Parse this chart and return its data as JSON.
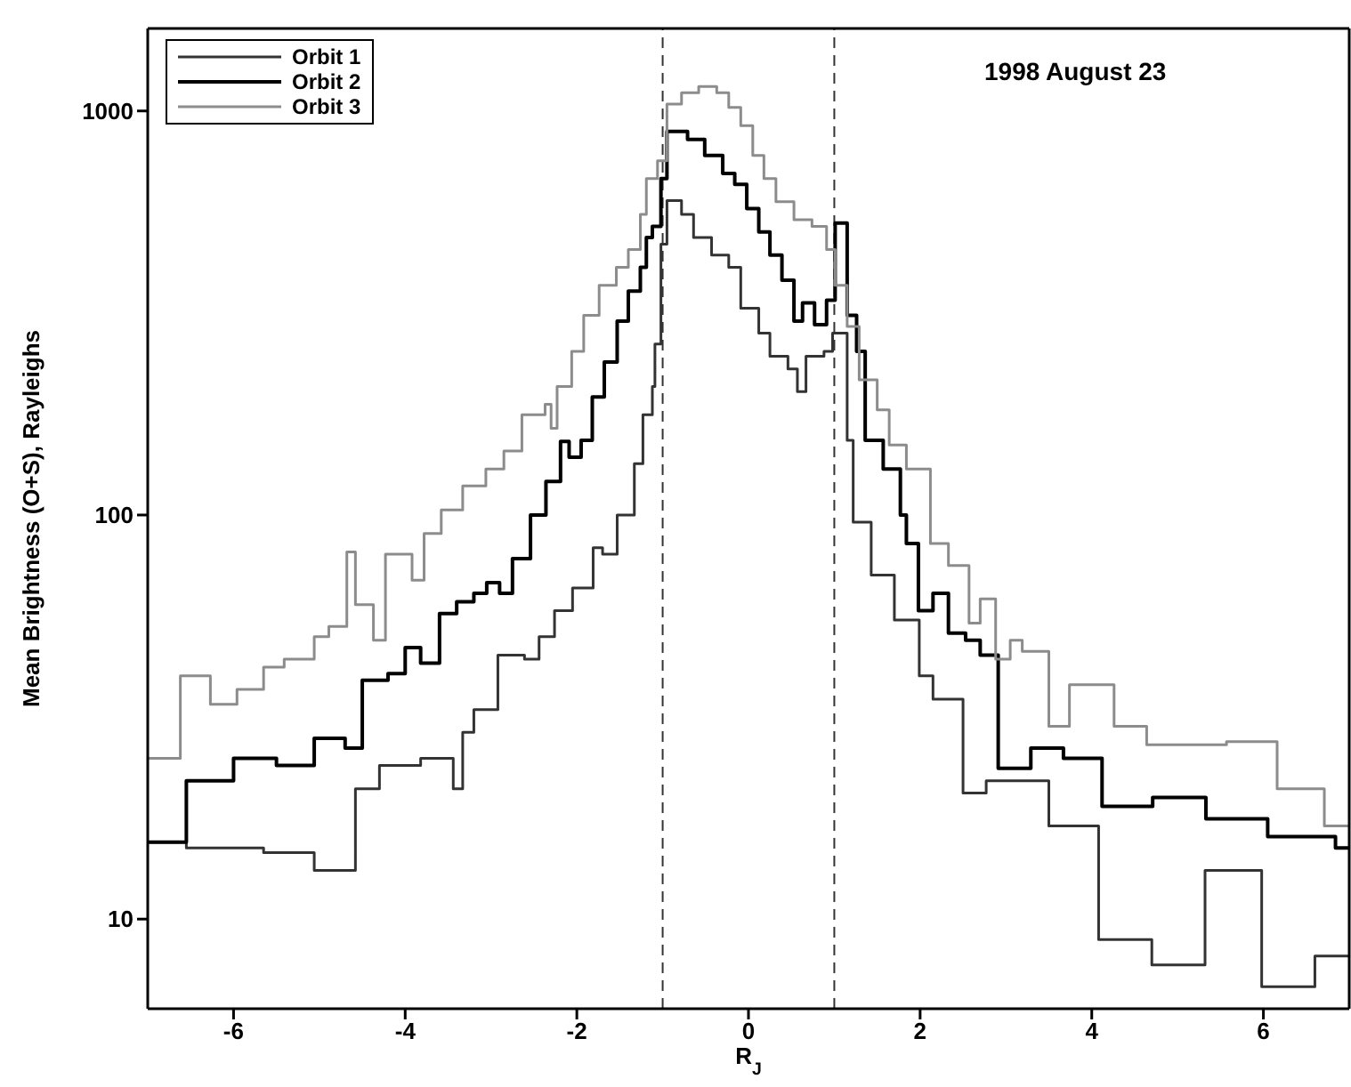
{
  "chart_data": {
    "type": "step",
    "xlabel": "R$_{J}$",
    "ylabel": "Mean Brightness (O+S), Rayleighs",
    "annotations": [
      "1998 August 23"
    ],
    "log": "y",
    "xlim": [
      -7,
      7
    ],
    "xticks": [
      -6,
      -4,
      -2,
      0,
      2,
      4,
      6
    ],
    "ylim": [
      6,
      1600
    ],
    "yticks": [
      10,
      100,
      1000
    ],
    "legend": "top left",
    "marker": "none",
    "line_style": "solid",
    "ref_lines": [
      {
        "axis": "x",
        "value": -1,
        "line_style": "dashed",
        "color": "#333333"
      },
      {
        "axis": "x",
        "value": 1,
        "line_style": "dashed",
        "color": "#333333"
      }
    ],
    "series": [
      {
        "name": "Orbit 1",
        "color": "#333333",
        "x": [
          -7,
          -6.55,
          -5.65,
          -5.06,
          -4.58,
          -4.3,
          -3.82,
          -3.44,
          -3.33,
          -3.2,
          -2.92,
          -2.61,
          -2.44,
          -2.26,
          -2.05,
          -1.81,
          -1.7,
          -1.53,
          -1.33,
          -1.23,
          -1.12,
          -1.09,
          -1.02,
          -0.95,
          -0.78,
          -0.64,
          -0.43,
          -0.23,
          -0.09,
          0.12,
          0.25,
          0.46,
          0.57,
          0.67,
          0.88,
          0.98,
          1.15,
          1.22,
          1.43,
          1.7,
          1.99,
          2.15,
          2.5,
          2.77,
          3.5,
          4.08,
          4.7,
          5.32,
          5.98,
          6.6,
          7
        ],
        "values": [
          15.5,
          15,
          14.6,
          13.2,
          21,
          24,
          25,
          21,
          29,
          33,
          45,
          44,
          50,
          58,
          66,
          83,
          80,
          100,
          134,
          177,
          208,
          265,
          468,
          600,
          555,
          486,
          440,
          410,
          325,
          282,
          247,
          230,
          202,
          247,
          254,
          282,
          153,
          96,
          71,
          55,
          40,
          35,
          20.5,
          22,
          17,
          8.9,
          7.7,
          13.2,
          6.8,
          8.1,
          8.1
        ]
      },
      {
        "name": "Orbit 2",
        "color": "#000000",
        "x": [
          -7,
          -6.55,
          -6.0,
          -5.5,
          -5.06,
          -4.7,
          -4.5,
          -4.2,
          -4.0,
          -3.82,
          -3.6,
          -3.4,
          -3.2,
          -3.05,
          -2.9,
          -2.75,
          -2.54,
          -2.36,
          -2.19,
          -2.09,
          -1.95,
          -1.82,
          -1.68,
          -1.53,
          -1.4,
          -1.26,
          -1.19,
          -1.12,
          -1.02,
          -0.95,
          -0.71,
          -0.51,
          -0.3,
          -0.16,
          -0.02,
          0.12,
          0.25,
          0.39,
          0.53,
          0.63,
          0.77,
          0.91,
          1.01,
          1.15,
          1.26,
          1.36,
          1.57,
          1.77,
          1.84,
          1.98,
          2.15,
          2.33,
          2.53,
          2.7,
          2.91,
          3.29,
          3.67,
          4.12,
          4.71,
          5.33,
          6.05,
          6.84,
          7
        ],
        "values": [
          15.5,
          22,
          25,
          24,
          28,
          26.5,
          39,
          40.5,
          47,
          43,
          57,
          61,
          64,
          68,
          64,
          78,
          100,
          121,
          152,
          139,
          153,
          196,
          239,
          302,
          358,
          410,
          486,
          518,
          680,
          890,
          850,
          776,
          700,
          658,
          573,
          502,
          440,
          381,
          302,
          335,
          296,
          340,
          528,
          312,
          254,
          153,
          130,
          100,
          85,
          58,
          64,
          51,
          49,
          45,
          23.6,
          26.5,
          25,
          19,
          20,
          17.7,
          16,
          15,
          15
        ]
      },
      {
        "name": "Orbit 3",
        "color": "#8c8c8c",
        "x": [
          -7,
          -6.62,
          -6.27,
          -5.96,
          -5.65,
          -5.41,
          -5.06,
          -4.89,
          -4.68,
          -4.58,
          -4.37,
          -4.23,
          -3.92,
          -3.78,
          -3.58,
          -3.33,
          -3.06,
          -2.85,
          -2.64,
          -2.37,
          -2.3,
          -2.23,
          -2.06,
          -1.92,
          -1.74,
          -1.54,
          -1.4,
          -1.26,
          -1.19,
          -1.06,
          -0.95,
          -0.78,
          -0.58,
          -0.37,
          -0.23,
          -0.09,
          0.05,
          0.18,
          0.32,
          0.53,
          0.74,
          0.91,
          1.01,
          1.15,
          1.29,
          1.5,
          1.64,
          1.84,
          2.12,
          2.33,
          2.57,
          2.7,
          2.88,
          3.05,
          3.19,
          3.5,
          3.74,
          4.26,
          4.64,
          5.57,
          6.16,
          6.71,
          7
        ],
        "values": [
          25,
          40,
          34,
          37,
          42,
          44,
          50,
          53,
          81,
          60,
          49,
          80,
          69,
          90,
          103,
          118,
          130,
          144,
          177,
          188,
          164,
          208,
          254,
          312,
          370,
          410,
          454,
          555,
          680,
          753,
          1040,
          1110,
          1150,
          1110,
          1020,
          920,
          776,
          680,
          596,
          538,
          518,
          454,
          370,
          293,
          216,
          182,
          149,
          130,
          85,
          75,
          54,
          62,
          44,
          49,
          46,
          30,
          38,
          30,
          27,
          27.5,
          21,
          17,
          17
        ]
      }
    ]
  }
}
